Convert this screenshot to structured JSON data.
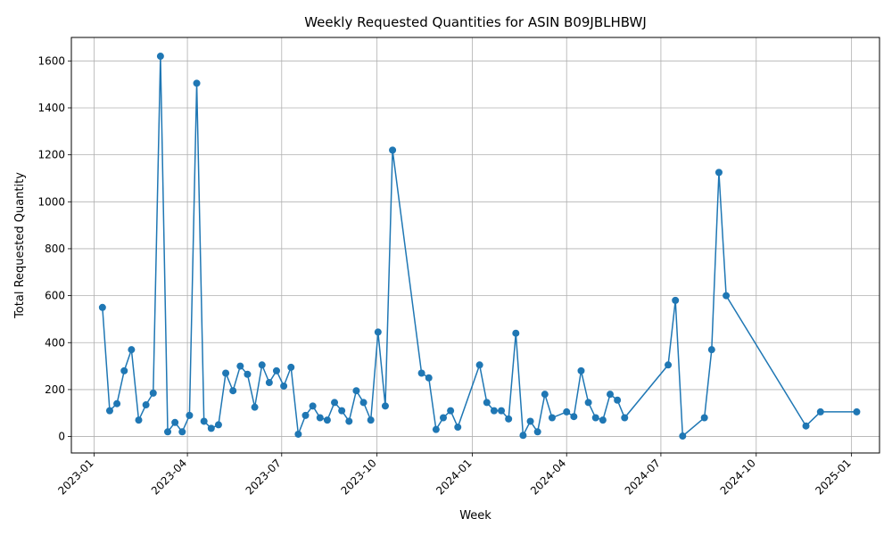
{
  "chart_data": {
    "type": "line",
    "title": "Weekly Requested Quantities for ASIN B09JBLHBWJ",
    "xlabel": "Week",
    "ylabel": "Total Requested Quantity",
    "grid": true,
    "x_ticks": [
      "2023-01",
      "2023-04",
      "2023-07",
      "2023-10",
      "2024-01",
      "2024-04",
      "2024-07",
      "2024-10",
      "2025-01"
    ],
    "y_ticks": [
      0,
      200,
      400,
      600,
      800,
      1000,
      1200,
      1400,
      1600
    ],
    "xlim": [
      "2022-12-10",
      "2025-01-28"
    ],
    "ylim": [
      -70,
      1700
    ],
    "colors": {
      "series": "#1f77b4",
      "grid": "#b0b0b0"
    },
    "series": [
      {
        "x": [
          "2023-01-09",
          "2023-01-16",
          "2023-01-23",
          "2023-01-30",
          "2023-02-06",
          "2023-02-13",
          "2023-02-20",
          "2023-02-27",
          "2023-03-06",
          "2023-03-13",
          "2023-03-20",
          "2023-03-27",
          "2023-04-03",
          "2023-04-10",
          "2023-04-17",
          "2023-04-24",
          "2023-05-01",
          "2023-05-08",
          "2023-05-15",
          "2023-05-22",
          "2023-05-29",
          "2023-06-05",
          "2023-06-12",
          "2023-06-19",
          "2023-06-26",
          "2023-07-03",
          "2023-07-10",
          "2023-07-17",
          "2023-07-24",
          "2023-07-31",
          "2023-08-07",
          "2023-08-14",
          "2023-08-21",
          "2023-08-28",
          "2023-09-04",
          "2023-09-11",
          "2023-09-18",
          "2023-09-25",
          "2023-10-02",
          "2023-10-09",
          "2023-10-16",
          "2023-11-13",
          "2023-11-20",
          "2023-11-27",
          "2023-12-04",
          "2023-12-11",
          "2023-12-18",
          "2024-01-08",
          "2024-01-15",
          "2024-01-22",
          "2024-01-29",
          "2024-02-05",
          "2024-02-12",
          "2024-02-19",
          "2024-02-26",
          "2024-03-04",
          "2024-03-11",
          "2024-03-18",
          "2024-04-01",
          "2024-04-08",
          "2024-04-15",
          "2024-04-22",
          "2024-04-29",
          "2024-05-06",
          "2024-05-13",
          "2024-05-20",
          "2024-05-27",
          "2024-07-08",
          "2024-07-15",
          "2024-07-22",
          "2024-08-12",
          "2024-08-19",
          "2024-08-26",
          "2024-09-02",
          "2024-11-18",
          "2024-12-02",
          "2025-01-06"
        ],
        "y": [
          550,
          110,
          140,
          280,
          370,
          70,
          135,
          185,
          1620,
          20,
          60,
          20,
          90,
          1505,
          65,
          35,
          50,
          270,
          195,
          300,
          265,
          125,
          305,
          230,
          280,
          215,
          295,
          10,
          90,
          130,
          80,
          70,
          145,
          110,
          65,
          195,
          145,
          70,
          445,
          130,
          1220,
          270,
          250,
          30,
          80,
          110,
          40,
          305,
          145,
          110,
          110,
          75,
          440,
          5,
          65,
          20,
          180,
          80,
          105,
          85,
          280,
          145,
          80,
          70,
          180,
          155,
          80,
          305,
          580,
          2,
          80,
          370,
          1125,
          600,
          45,
          105,
          105
        ]
      }
    ]
  }
}
